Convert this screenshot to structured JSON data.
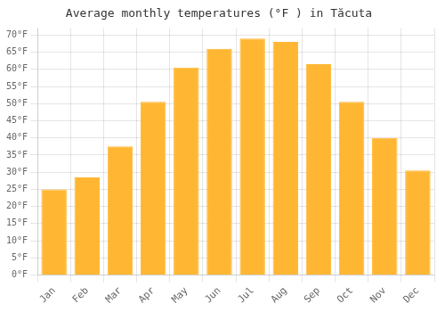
{
  "chart_data": {
    "type": "bar",
    "title": "Average monthly temperatures (°F ) in Tăcuta",
    "categories": [
      "Jan",
      "Feb",
      "Mar",
      "Apr",
      "May",
      "Jun",
      "Jul",
      "Aug",
      "Sep",
      "Oct",
      "Nov",
      "Dec"
    ],
    "values": [
      25,
      28.5,
      37.5,
      50.5,
      60.5,
      66,
      69,
      68,
      61.5,
      50.5,
      40,
      30.5
    ],
    "color": "#FFB733",
    "ylim": [
      0,
      72
    ],
    "yticks": [
      {
        "value": 0,
        "label": "0°F"
      },
      {
        "value": 5,
        "label": "5°F"
      },
      {
        "value": 10,
        "label": "10°F"
      },
      {
        "value": 15,
        "label": "15°F"
      },
      {
        "value": 20,
        "label": "20°F"
      },
      {
        "value": 25,
        "label": "25°F"
      },
      {
        "value": 30,
        "label": "30°F"
      },
      {
        "value": 35,
        "label": "35°F"
      },
      {
        "value": 40,
        "label": "40°F"
      },
      {
        "value": 45,
        "label": "45°F"
      },
      {
        "value": 50,
        "label": "50°F"
      },
      {
        "value": 55,
        "label": "55°F"
      },
      {
        "value": 60,
        "label": "60°F"
      },
      {
        "value": 65,
        "label": "65°F"
      },
      {
        "value": 70,
        "label": "70°F"
      }
    ],
    "grid": true
  }
}
